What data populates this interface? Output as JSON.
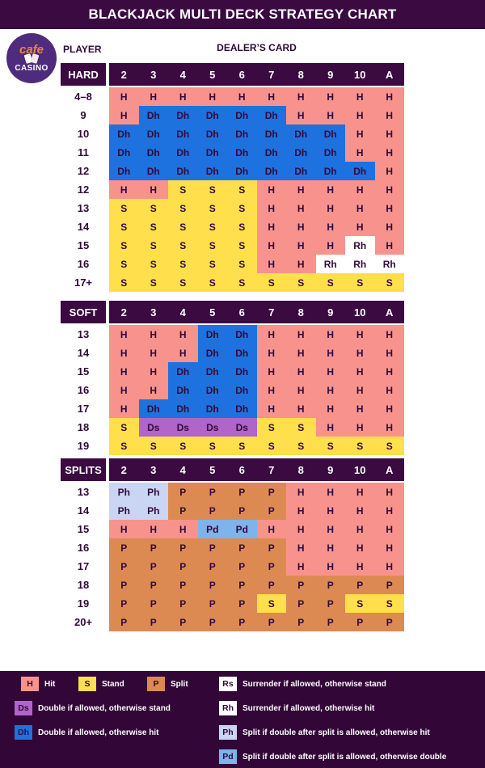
{
  "title": "BLACKJACK MULTI DECK STRATEGY CHART",
  "logo": {
    "top": "cafe",
    "bottom": "CASINO"
  },
  "labels": {
    "player": "PLAYER",
    "dealer": "DEALER’S CARD"
  },
  "chart_data": {
    "type": "table",
    "title": "BLACKJACK MULTI DECK STRATEGY CHART",
    "columns": [
      "2",
      "3",
      "4",
      "5",
      "6",
      "7",
      "8",
      "9",
      "10",
      "A"
    ],
    "tables": [
      {
        "name": "HARD",
        "rows": [
          {
            "label": "4–8",
            "cells": [
              "H",
              "H",
              "H",
              "H",
              "H",
              "H",
              "H",
              "H",
              "H",
              "H"
            ]
          },
          {
            "label": "9",
            "cells": [
              "H",
              "Dh",
              "Dh",
              "Dh",
              "Dh",
              "Dh",
              "H",
              "H",
              "H",
              "H"
            ]
          },
          {
            "label": "10",
            "cells": [
              "Dh",
              "Dh",
              "Dh",
              "Dh",
              "Dh",
              "Dh",
              "Dh",
              "Dh",
              "H",
              "H"
            ]
          },
          {
            "label": "11",
            "cells": [
              "Dh",
              "Dh",
              "Dh",
              "Dh",
              "Dh",
              "Dh",
              "Dh",
              "Dh",
              "H",
              "H"
            ]
          },
          {
            "label": "12",
            "cells": [
              "Dh",
              "Dh",
              "Dh",
              "Dh",
              "Dh",
              "Dh",
              "Dh",
              "Dh",
              "Dh",
              "H"
            ]
          },
          {
            "label": "12",
            "cells": [
              "H",
              "H",
              "S",
              "S",
              "S",
              "H",
              "H",
              "H",
              "H",
              "H"
            ]
          },
          {
            "label": "13",
            "cells": [
              "S",
              "S",
              "S",
              "S",
              "S",
              "H",
              "H",
              "H",
              "H",
              "H"
            ]
          },
          {
            "label": "14",
            "cells": [
              "S",
              "S",
              "S",
              "S",
              "S",
              "H",
              "H",
              "H",
              "H",
              "H"
            ]
          },
          {
            "label": "15",
            "cells": [
              "S",
              "S",
              "S",
              "S",
              "S",
              "H",
              "H",
              "H",
              "Rh",
              "H"
            ]
          },
          {
            "label": "16",
            "cells": [
              "S",
              "S",
              "S",
              "S",
              "S",
              "H",
              "H",
              "Rh",
              "Rh",
              "Rh"
            ]
          },
          {
            "label": "17+",
            "cells": [
              "S",
              "S",
              "S",
              "S",
              "S",
              "S",
              "S",
              "S",
              "S",
              "S"
            ]
          }
        ]
      },
      {
        "name": "SOFT",
        "rows": [
          {
            "label": "13",
            "cells": [
              "H",
              "H",
              "H",
              "Dh",
              "Dh",
              "H",
              "H",
              "H",
              "H",
              "H"
            ]
          },
          {
            "label": "14",
            "cells": [
              "H",
              "H",
              "H",
              "Dh",
              "Dh",
              "H",
              "H",
              "H",
              "H",
              "H"
            ]
          },
          {
            "label": "15",
            "cells": [
              "H",
              "H",
              "Dh",
              "Dh",
              "Dh",
              "H",
              "H",
              "H",
              "H",
              "H"
            ]
          },
          {
            "label": "16",
            "cells": [
              "H",
              "H",
              "Dh",
              "Dh",
              "Dh",
              "H",
              "H",
              "H",
              "H",
              "H"
            ]
          },
          {
            "label": "17",
            "cells": [
              "H",
              "Dh",
              "Dh",
              "Dh",
              "Dh",
              "H",
              "H",
              "H",
              "H",
              "H"
            ]
          },
          {
            "label": "18",
            "cells": [
              "S",
              "Ds",
              "Ds",
              "Ds",
              "Ds",
              "S",
              "S",
              "H",
              "H",
              "H"
            ]
          },
          {
            "label": "19",
            "cells": [
              "S",
              "S",
              "S",
              "S",
              "S",
              "S",
              "S",
              "S",
              "S",
              "S"
            ]
          }
        ]
      },
      {
        "name": "SPLITS",
        "rows": [
          {
            "label": "13",
            "cells": [
              "Ph",
              "Ph",
              "P",
              "P",
              "P",
              "P",
              "H",
              "H",
              "H",
              "H"
            ]
          },
          {
            "label": "14",
            "cells": [
              "Ph",
              "Ph",
              "P",
              "P",
              "P",
              "P",
              "H",
              "H",
              "H",
              "H"
            ]
          },
          {
            "label": "15",
            "cells": [
              "H",
              "H",
              "H",
              "Pd",
              "Pd",
              "H",
              "H",
              "H",
              "H",
              "H"
            ]
          },
          {
            "label": "16",
            "cells": [
              "P",
              "P",
              "P",
              "P",
              "P",
              "P",
              "H",
              "H",
              "H",
              "H"
            ]
          },
          {
            "label": "17",
            "cells": [
              "P",
              "P",
              "P",
              "P",
              "P",
              "P",
              "H",
              "H",
              "H",
              "H"
            ]
          },
          {
            "label": "18",
            "cells": [
              "P",
              "P",
              "P",
              "P",
              "P",
              "P",
              "P",
              "P",
              "P",
              "P"
            ]
          },
          {
            "label": "19",
            "cells": [
              "P",
              "P",
              "P",
              "P",
              "P",
              "S",
              "P",
              "P",
              "S",
              "S"
            ]
          },
          {
            "label": "20+",
            "cells": [
              "P",
              "P",
              "P",
              "P",
              "P",
              "P",
              "P",
              "P",
              "P",
              "P"
            ]
          }
        ]
      }
    ]
  },
  "action_colors": {
    "H": {
      "bg": "#F7938C"
    },
    "S": {
      "bg": "#FFDF4C"
    },
    "Dh": {
      "bg": "#1E72DF"
    },
    "Ds": {
      "bg": "#B164C9"
    },
    "P": {
      "bg": "#DD8A52"
    },
    "Ph": {
      "bg": "#CAD5F4"
    },
    "Pd": {
      "bg": "#7EB3EC"
    },
    "Rh": {
      "bg": "#FFFFFF"
    },
    "Rs": {
      "bg": "#FFFFFF"
    }
  },
  "theme": {
    "header_bg": "#3A0A41",
    "legend_bg": "#320737",
    "ink": "#31093B",
    "logo_circle": "#4F2B7E",
    "logo_accent": "#F08243"
  },
  "legend": {
    "items": [
      {
        "code": "H",
        "text": "Hit"
      },
      {
        "code": "S",
        "text": "Stand"
      },
      {
        "code": "P",
        "text": "Split"
      },
      {
        "code": "Rs",
        "text": "Surrender if allowed, otherwise stand"
      },
      {
        "code": "Ds",
        "text": "Double if allowed, otherwise stand"
      },
      {
        "code": "Rh",
        "text": "Surrender if allowed, otherwise hit"
      },
      {
        "code": "Dh",
        "text": "Double if allowed, otherwise hit"
      },
      {
        "code": "Ph",
        "text": "Split if double after split is allowed, otherwise hit"
      },
      {
        "code": "Pd",
        "text": "Split if double after split is allowed, otherwise double"
      }
    ]
  }
}
